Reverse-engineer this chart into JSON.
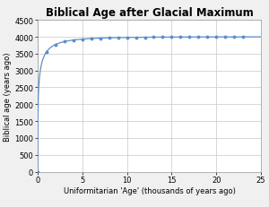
{
  "title": "Biblical Age after Glacial Maximum",
  "xlabel": "Uniformitarian 'Age' (thousands of years ago)",
  "ylabel": "Biblical age (years ago)",
  "xlim": [
    0,
    25
  ],
  "ylim": [
    0,
    4500
  ],
  "xticks": [
    0,
    5,
    10,
    15,
    20,
    25
  ],
  "yticks": [
    0,
    500,
    1000,
    1500,
    2000,
    2500,
    3000,
    3500,
    4000,
    4500
  ],
  "line_color": "#5b8fc9",
  "marker_color": "#5b8fc9",
  "background_color": "#f0f0f0",
  "plot_bg_color": "#ffffff",
  "grid_color": "#c8c8c8",
  "asymptote": 4000,
  "k": 2.2,
  "p": 0.38,
  "title_fontsize": 8.5,
  "axis_label_fontsize": 6.0,
  "tick_fontsize": 6.0
}
